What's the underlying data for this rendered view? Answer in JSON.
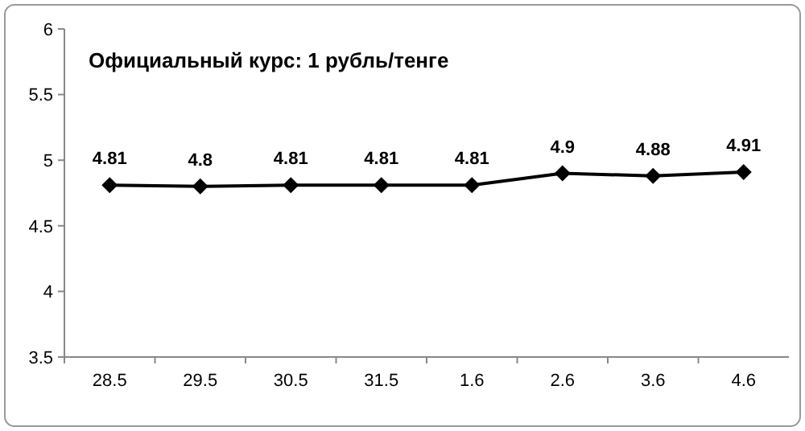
{
  "chart_data": {
    "type": "line",
    "title": "Официальный курс: 1 рубль/тенге",
    "categories": [
      "28.5",
      "29.5",
      "30.5",
      "31.5",
      "1.6",
      "2.6",
      "3.6",
      "4.6"
    ],
    "series": [
      {
        "color": "#000000",
        "values": [
          4.81,
          4.8,
          4.81,
          4.81,
          4.81,
          4.9,
          4.88,
          4.91
        ]
      }
    ],
    "ylim": [
      3.5,
      6
    ],
    "yticks": [
      3.5,
      4,
      4.5,
      5,
      5.5,
      6
    ],
    "grid": false,
    "marker": "diamond",
    "line_style": "solid",
    "data_labels": true
  }
}
